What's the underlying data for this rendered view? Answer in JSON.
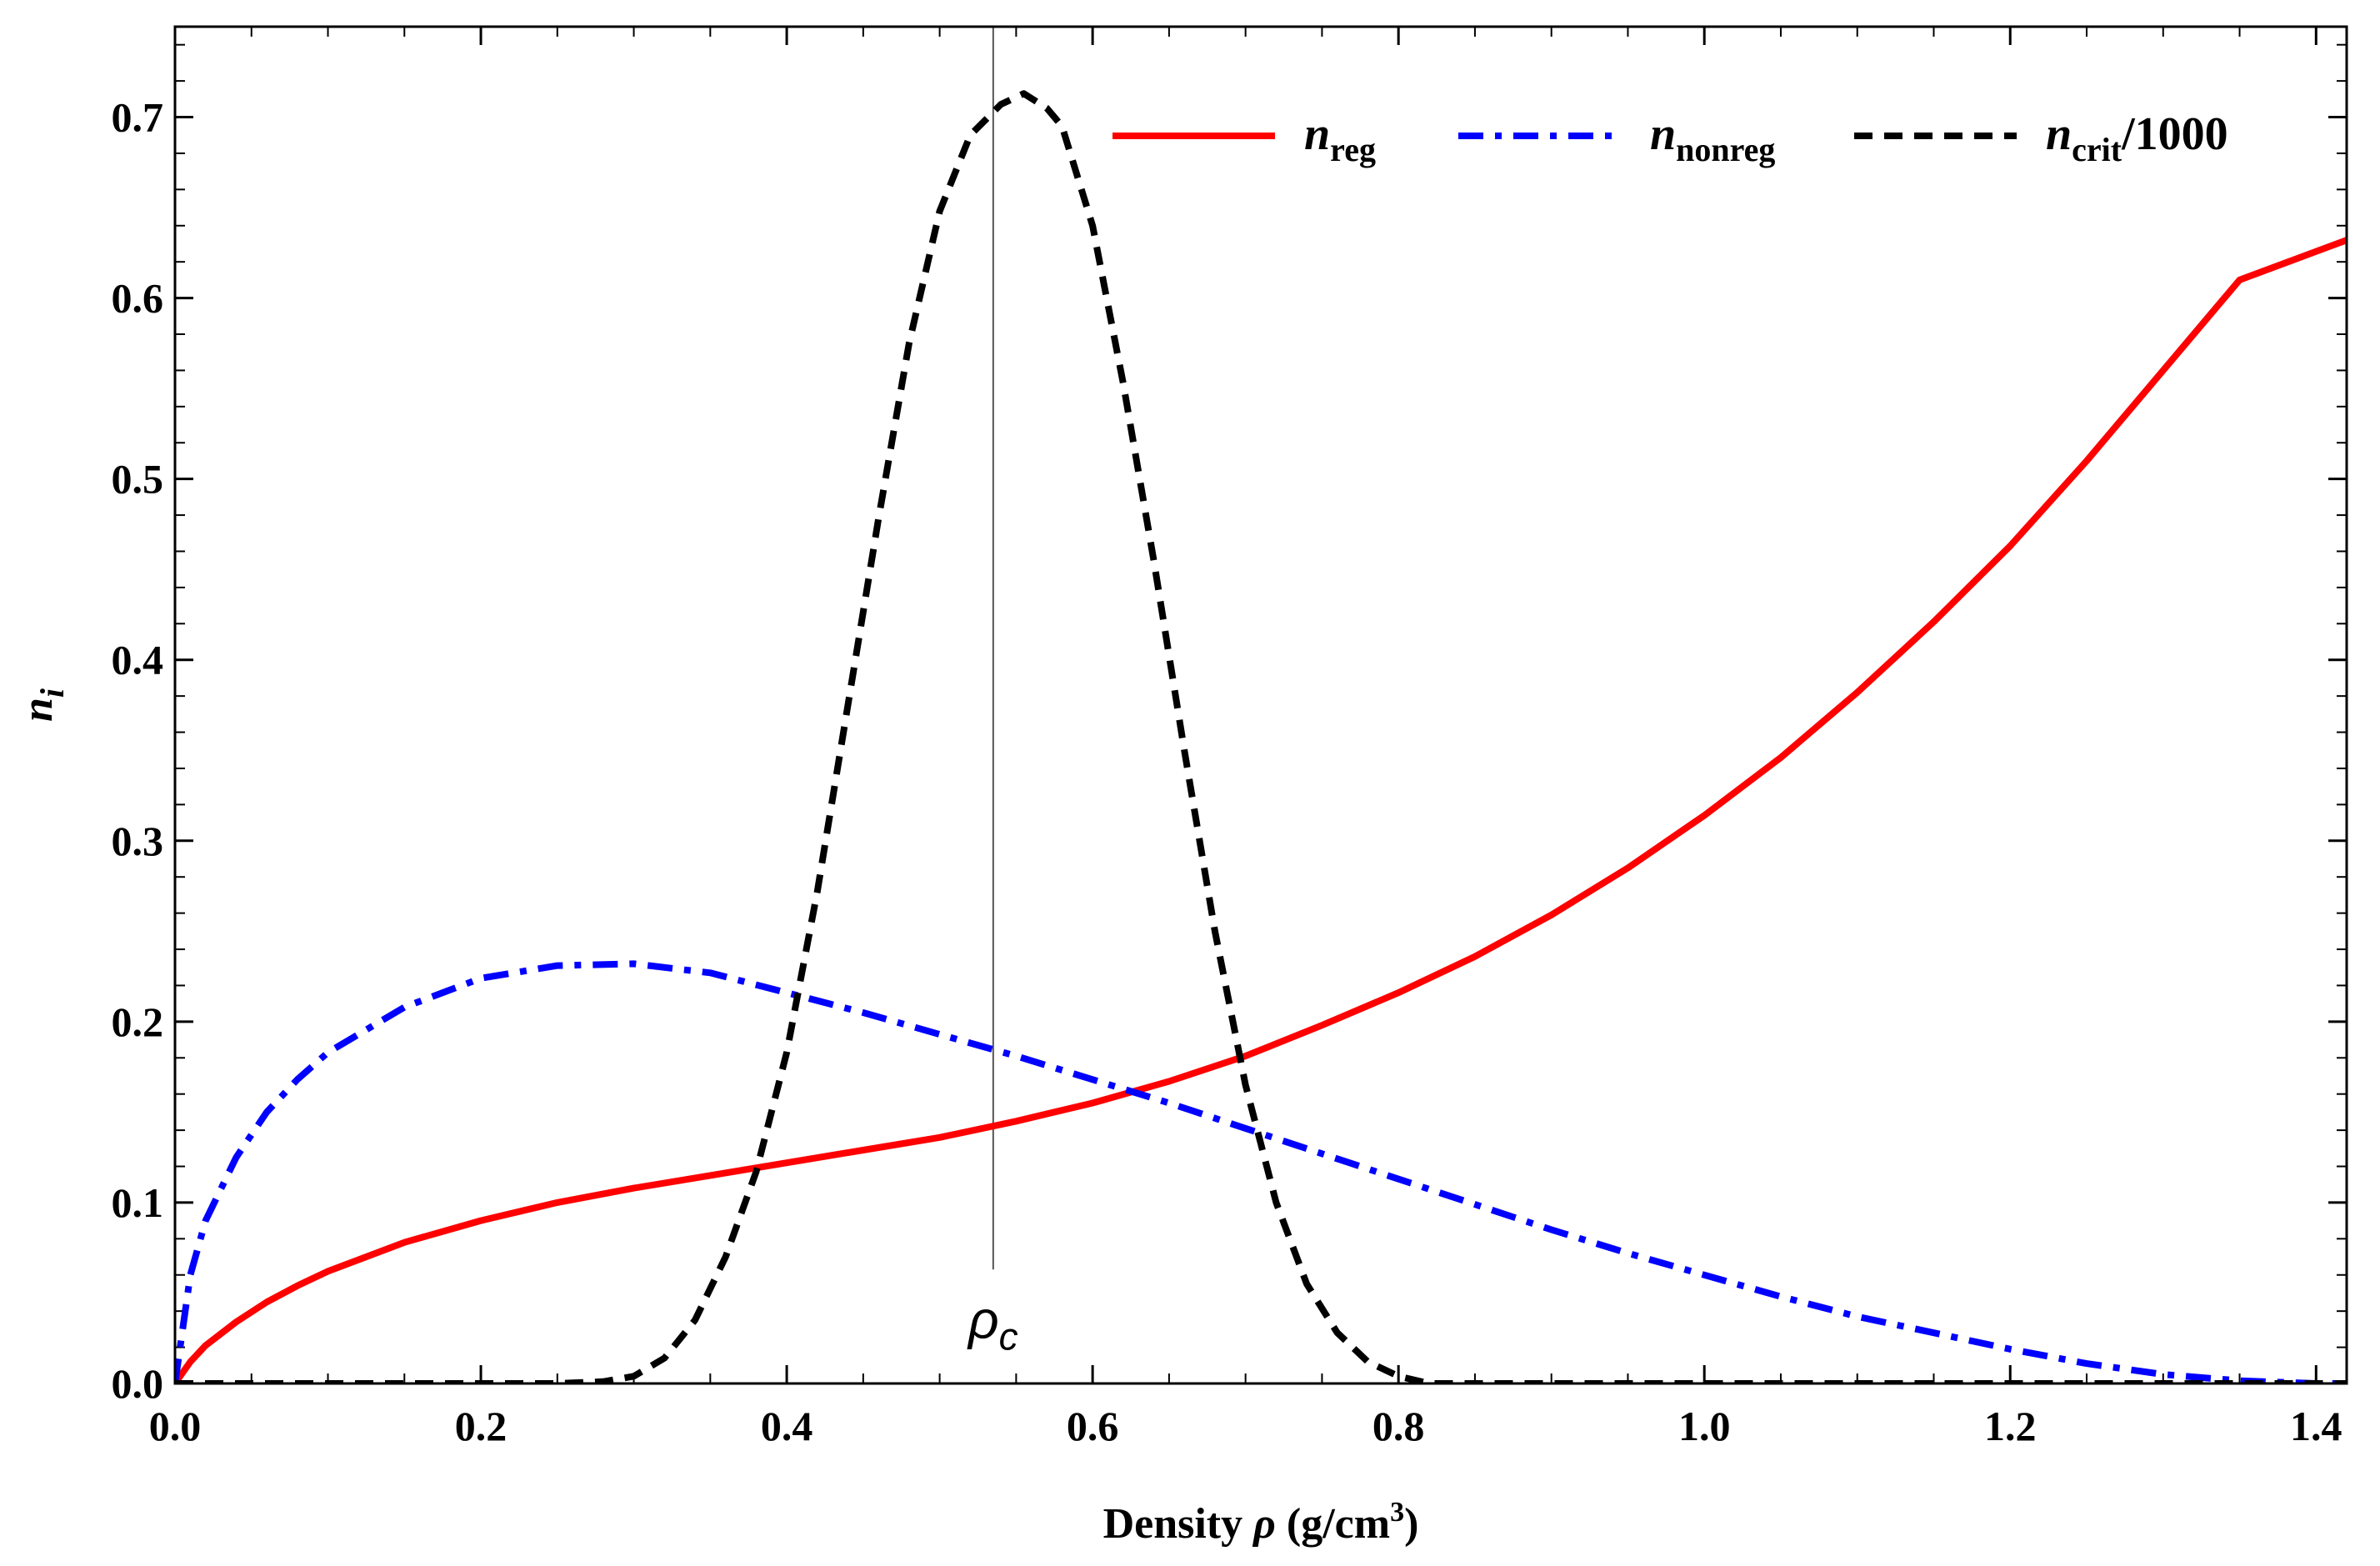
{
  "chart_data": {
    "type": "line",
    "title": "",
    "xlabel": "Density ρ (g/cm³)",
    "xlabel_parts": {
      "prefix": "Density ",
      "symbol": "ρ",
      "unit_open": " (g/cm",
      "unit_exp": "3",
      "unit_close": ")"
    },
    "ylabel": "n_i",
    "ylabel_parts": {
      "base": "n",
      "sub": "i"
    },
    "xlim": [
      0.0,
      1.42
    ],
    "ylim": [
      0.0,
      0.75
    ],
    "xticks": [
      "0.0",
      "0.2",
      "0.4",
      "0.6",
      "0.8",
      "1.0",
      "1.2",
      "1.4"
    ],
    "yticks": [
      "0.0",
      "0.1",
      "0.2",
      "0.3",
      "0.4",
      "0.5",
      "0.6",
      "0.7"
    ],
    "legend_position": "top-right",
    "annotations": [
      {
        "type": "vline",
        "x": 0.535,
        "label_base": "ρ",
        "label_sub": "c"
      }
    ],
    "series": [
      {
        "name": "n_reg",
        "label_base": "n",
        "label_sub": "reg",
        "label_suffix": "",
        "color": "#ff0000",
        "style": "solid",
        "x": [
          0.0,
          0.01,
          0.02,
          0.04,
          0.06,
          0.08,
          0.1,
          0.15,
          0.2,
          0.25,
          0.3,
          0.35,
          0.4,
          0.45,
          0.5,
          0.55,
          0.6,
          0.65,
          0.7,
          0.75,
          0.8,
          0.85,
          0.9,
          0.95,
          1.0,
          1.05,
          1.1,
          1.15,
          1.2,
          1.25,
          1.3,
          1.35,
          1.42
        ],
        "y": [
          0.0,
          0.012,
          0.021,
          0.034,
          0.045,
          0.054,
          0.062,
          0.078,
          0.09,
          0.1,
          0.108,
          0.115,
          0.122,
          0.129,
          0.136,
          0.145,
          0.155,
          0.167,
          0.181,
          0.198,
          0.216,
          0.236,
          0.259,
          0.285,
          0.314,
          0.346,
          0.382,
          0.421,
          0.463,
          0.51,
          0.56,
          0.61,
          0.632
        ]
      },
      {
        "name": "n_nonreg",
        "label_base": "n",
        "label_sub": "nonreg",
        "label_suffix": "",
        "color": "#0000ff",
        "style": "dashdot",
        "x": [
          0.0,
          0.01,
          0.02,
          0.04,
          0.06,
          0.08,
          0.1,
          0.15,
          0.2,
          0.25,
          0.3,
          0.35,
          0.4,
          0.45,
          0.5,
          0.55,
          0.6,
          0.65,
          0.7,
          0.75,
          0.8,
          0.85,
          0.9,
          0.95,
          1.0,
          1.05,
          1.1,
          1.15,
          1.2,
          1.25,
          1.3,
          1.35,
          1.4,
          1.42
        ],
        "y": [
          0.0,
          0.06,
          0.09,
          0.125,
          0.15,
          0.168,
          0.183,
          0.208,
          0.224,
          0.231,
          0.232,
          0.227,
          0.216,
          0.205,
          0.193,
          0.181,
          0.168,
          0.155,
          0.141,
          0.127,
          0.113,
          0.099,
          0.085,
          0.072,
          0.06,
          0.048,
          0.037,
          0.028,
          0.019,
          0.011,
          0.005,
          0.0015,
          0.0,
          0.0
        ]
      },
      {
        "name": "n_crit/1000",
        "label_base": "n",
        "label_sub": "crit",
        "label_suffix": "/1000",
        "color": "#000000",
        "style": "dashed",
        "x": [
          0.0,
          0.25,
          0.28,
          0.3,
          0.32,
          0.34,
          0.36,
          0.38,
          0.4,
          0.42,
          0.44,
          0.46,
          0.48,
          0.5,
          0.52,
          0.54,
          0.555,
          0.57,
          0.58,
          0.6,
          0.62,
          0.64,
          0.66,
          0.68,
          0.7,
          0.72,
          0.74,
          0.76,
          0.78,
          0.8,
          0.82,
          1.42
        ],
        "y": [
          0.0,
          0.0,
          0.001,
          0.004,
          0.014,
          0.035,
          0.07,
          0.117,
          0.183,
          0.272,
          0.375,
          0.478,
          0.575,
          0.648,
          0.69,
          0.707,
          0.713,
          0.705,
          0.695,
          0.64,
          0.553,
          0.455,
          0.35,
          0.25,
          0.165,
          0.1,
          0.055,
          0.028,
          0.012,
          0.004,
          0.0,
          0.0
        ]
      }
    ]
  }
}
